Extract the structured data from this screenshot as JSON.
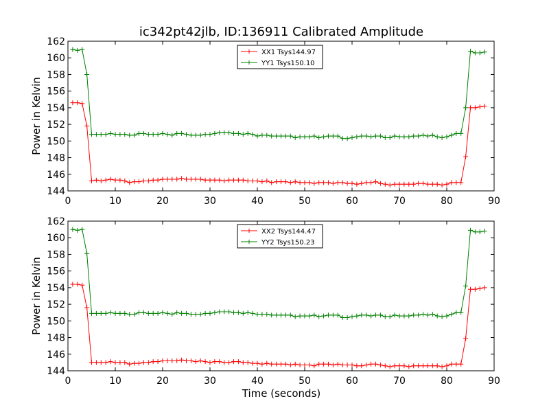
{
  "title": "ic342pt42jlb, ID:136911 Calibrated Amplitude",
  "xlabel": "Time (seconds)",
  "colors": {
    "red": "#ff0000",
    "green": "#008000"
  },
  "chart_data": [
    {
      "type": "line",
      "ylabel": "Power in Kelvin",
      "xlim": [
        0,
        90
      ],
      "ylim": [
        144,
        162
      ],
      "xticks": [
        "0",
        "10",
        "20",
        "30",
        "40",
        "50",
        "60",
        "70",
        "80",
        "90"
      ],
      "yticks": [
        "144",
        "146",
        "148",
        "150",
        "152",
        "154",
        "156",
        "158",
        "160",
        "162"
      ],
      "legend": "top-center",
      "grid": false,
      "x": [
        1,
        2,
        3,
        4,
        5,
        6,
        7,
        8,
        9,
        10,
        11,
        12,
        13,
        14,
        15,
        16,
        17,
        18,
        19,
        20,
        21,
        22,
        23,
        24,
        25,
        26,
        27,
        28,
        29,
        30,
        31,
        32,
        33,
        34,
        35,
        36,
        37,
        38,
        39,
        40,
        41,
        42,
        43,
        44,
        45,
        46,
        47,
        48,
        49,
        50,
        51,
        52,
        53,
        54,
        55,
        56,
        57,
        58,
        59,
        60,
        61,
        62,
        63,
        64,
        65,
        66,
        67,
        68,
        69,
        70,
        71,
        72,
        73,
        74,
        75,
        76,
        77,
        78,
        79,
        80,
        81,
        82,
        83,
        84,
        85,
        86,
        87,
        88
      ],
      "series": [
        {
          "name": "XX1 Tsys144.97",
          "color": "#ff0000",
          "values": [
            154.6,
            154.6,
            154.5,
            151.8,
            145.2,
            145.3,
            145.2,
            145.3,
            145.4,
            145.3,
            145.3,
            145.2,
            145.0,
            145.1,
            145.1,
            145.2,
            145.2,
            145.3,
            145.3,
            145.4,
            145.4,
            145.4,
            145.4,
            145.5,
            145.4,
            145.4,
            145.4,
            145.4,
            145.3,
            145.3,
            145.3,
            145.3,
            145.2,
            145.3,
            145.3,
            145.3,
            145.3,
            145.2,
            145.2,
            145.2,
            145.1,
            145.2,
            145.0,
            145.1,
            145.1,
            145.1,
            145.0,
            145.1,
            145.0,
            145.0,
            145.0,
            144.9,
            145.0,
            145.0,
            145.0,
            144.9,
            145.0,
            145.0,
            144.9,
            144.9,
            144.8,
            144.9,
            145.0,
            145.0,
            145.1,
            144.9,
            144.8,
            144.7,
            144.8,
            144.8,
            144.8,
            144.8,
            144.8,
            144.9,
            144.9,
            144.8,
            144.8,
            144.8,
            144.7,
            144.8,
            145.0,
            145.0,
            145.0,
            148.1,
            154.0,
            154.0,
            154.1,
            154.2
          ]
        },
        {
          "name": "YY1 Tsys150.10",
          "color": "#008000",
          "values": [
            161.0,
            160.9,
            161.0,
            158.0,
            150.8,
            150.8,
            150.8,
            150.8,
            150.9,
            150.8,
            150.8,
            150.8,
            150.7,
            150.7,
            150.9,
            150.9,
            150.8,
            150.8,
            150.8,
            150.9,
            150.8,
            150.7,
            150.9,
            150.9,
            150.8,
            150.7,
            150.7,
            150.7,
            150.8,
            150.8,
            150.9,
            151.0,
            151.0,
            151.0,
            150.9,
            150.9,
            150.8,
            150.9,
            150.8,
            150.6,
            150.7,
            150.7,
            150.6,
            150.6,
            150.6,
            150.6,
            150.6,
            150.4,
            150.5,
            150.5,
            150.5,
            150.6,
            150.4,
            150.5,
            150.6,
            150.6,
            150.6,
            150.3,
            150.3,
            150.4,
            150.5,
            150.6,
            150.6,
            150.5,
            150.6,
            150.6,
            150.4,
            150.4,
            150.6,
            150.5,
            150.5,
            150.5,
            150.6,
            150.6,
            150.7,
            150.6,
            150.7,
            150.5,
            150.4,
            150.5,
            150.7,
            150.9,
            150.9,
            154.0,
            160.8,
            160.6,
            160.6,
            160.7
          ]
        }
      ]
    },
    {
      "type": "line",
      "ylabel": "Power in Kelvin",
      "xlim": [
        0,
        90
      ],
      "ylim": [
        144,
        162
      ],
      "xticks": [
        "0",
        "10",
        "20",
        "30",
        "40",
        "50",
        "60",
        "70",
        "80",
        "90"
      ],
      "yticks": [
        "144",
        "146",
        "148",
        "150",
        "152",
        "154",
        "156",
        "158",
        "160",
        "162"
      ],
      "legend": "top-center",
      "grid": false,
      "x": [
        1,
        2,
        3,
        4,
        5,
        6,
        7,
        8,
        9,
        10,
        11,
        12,
        13,
        14,
        15,
        16,
        17,
        18,
        19,
        20,
        21,
        22,
        23,
        24,
        25,
        26,
        27,
        28,
        29,
        30,
        31,
        32,
        33,
        34,
        35,
        36,
        37,
        38,
        39,
        40,
        41,
        42,
        43,
        44,
        45,
        46,
        47,
        48,
        49,
        50,
        51,
        52,
        53,
        54,
        55,
        56,
        57,
        58,
        59,
        60,
        61,
        62,
        63,
        64,
        65,
        66,
        67,
        68,
        69,
        70,
        71,
        72,
        73,
        74,
        75,
        76,
        77,
        78,
        79,
        80,
        81,
        82,
        83,
        84,
        85,
        86,
        87,
        88
      ],
      "series": [
        {
          "name": "XX2 Tsys144.47",
          "color": "#ff0000",
          "values": [
            154.4,
            154.4,
            154.3,
            151.6,
            145.0,
            145.0,
            145.0,
            145.0,
            145.1,
            145.0,
            145.0,
            145.0,
            144.8,
            144.9,
            144.9,
            145.0,
            145.0,
            145.1,
            145.1,
            145.2,
            145.2,
            145.2,
            145.2,
            145.3,
            145.2,
            145.2,
            145.1,
            145.2,
            145.1,
            145.0,
            145.1,
            145.1,
            145.0,
            145.0,
            145.1,
            145.1,
            145.0,
            145.0,
            144.9,
            144.9,
            144.8,
            144.9,
            144.8,
            144.8,
            144.8,
            144.8,
            144.7,
            144.8,
            144.7,
            144.7,
            144.7,
            144.6,
            144.8,
            144.8,
            144.8,
            144.7,
            144.8,
            144.7,
            144.7,
            144.7,
            144.6,
            144.6,
            144.7,
            144.8,
            144.8,
            144.7,
            144.6,
            144.5,
            144.6,
            144.6,
            144.6,
            144.5,
            144.6,
            144.6,
            144.6,
            144.6,
            144.6,
            144.6,
            144.5,
            144.6,
            144.8,
            144.8,
            144.8,
            147.9,
            153.8,
            153.8,
            153.9,
            154.0
          ]
        },
        {
          "name": "YY2 Tsys150.23",
          "color": "#008000",
          "values": [
            161.0,
            160.9,
            161.0,
            158.1,
            150.9,
            150.9,
            150.9,
            150.9,
            151.0,
            150.9,
            150.9,
            150.9,
            150.8,
            150.8,
            151.0,
            151.0,
            150.9,
            150.9,
            150.9,
            151.0,
            150.9,
            150.8,
            151.0,
            150.9,
            150.9,
            150.8,
            150.8,
            150.8,
            150.9,
            150.9,
            151.0,
            151.1,
            151.1,
            151.1,
            151.0,
            151.0,
            150.9,
            151.0,
            150.9,
            150.8,
            150.8,
            150.8,
            150.7,
            150.7,
            150.7,
            150.7,
            150.7,
            150.5,
            150.6,
            150.6,
            150.6,
            150.7,
            150.5,
            150.6,
            150.7,
            150.7,
            150.7,
            150.4,
            150.4,
            150.5,
            150.6,
            150.7,
            150.7,
            150.6,
            150.7,
            150.7,
            150.5,
            150.5,
            150.7,
            150.6,
            150.6,
            150.6,
            150.7,
            150.7,
            150.8,
            150.7,
            150.8,
            150.6,
            150.5,
            150.6,
            150.8,
            151.0,
            151.0,
            154.2,
            160.9,
            160.7,
            160.7,
            160.8
          ]
        }
      ]
    }
  ]
}
